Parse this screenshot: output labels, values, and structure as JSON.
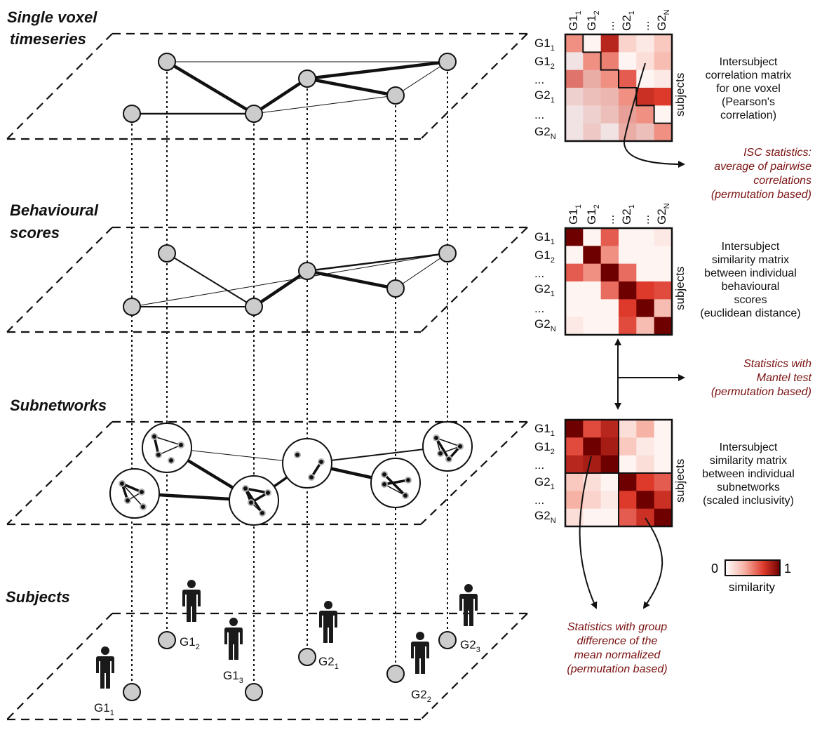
{
  "planes": {
    "timeseries": {
      "title_line1": "Single voxel",
      "title_line2": "timeseries"
    },
    "behaviour": {
      "title_line1": "Behavioural",
      "title_line2": "scores"
    },
    "subnetworks": {
      "title": "Subnetworks"
    },
    "subjects": {
      "title": "Subjects"
    }
  },
  "subjects": [
    {
      "group": "G1",
      "index": "1"
    },
    {
      "group": "G1",
      "index": "2"
    },
    {
      "group": "G1",
      "index": "3"
    },
    {
      "group": "G2",
      "index": "1"
    },
    {
      "group": "G2",
      "index": "2"
    },
    {
      "group": "G2",
      "index": "3"
    }
  ],
  "matrix_axis": {
    "top_labels": [
      {
        "main": "G1",
        "sub": "1"
      },
      {
        "main": "G1",
        "sub": "2"
      },
      {
        "main": "...",
        "sub": ""
      },
      {
        "main": "G2",
        "sub": "1"
      },
      {
        "main": "...",
        "sub": ""
      },
      {
        "main": "G2",
        "sub": "N"
      }
    ],
    "row_labels": [
      {
        "main": "G1",
        "sub": "1"
      },
      {
        "main": "G1",
        "sub": "2"
      },
      {
        "main": "...",
        "sub": ""
      },
      {
        "main": "G2",
        "sub": "1"
      },
      {
        "main": "...",
        "sub": ""
      },
      {
        "main": "G2",
        "sub": "N"
      }
    ],
    "side_label": "subjects"
  },
  "matrices": {
    "isc": {
      "desc": [
        "Intersubject",
        "correlation matrix",
        "for one voxel",
        "(Pearson's",
        "correlation)"
      ],
      "values": [
        [
          0.45,
          0.05,
          0.8,
          0.2,
          0.1,
          0.25
        ],
        [
          0.05,
          0.45,
          0.5,
          0.05,
          0.15,
          0.3
        ],
        [
          0.55,
          0.35,
          0.45,
          0.6,
          0.05,
          0.1
        ],
        [
          0.15,
          0.25,
          0.3,
          0.45,
          0.75,
          0.7
        ],
        [
          0.05,
          0.15,
          0.25,
          0.4,
          0.45,
          0.05
        ],
        [
          0.05,
          0.2,
          0.05,
          0.35,
          0.25,
          0.45
        ]
      ]
    },
    "behaviour": {
      "desc": [
        "Intersubject",
        "similarity matrix",
        "between individual",
        "behavioural",
        "scores",
        "(euclidean distance)"
      ],
      "values": [
        [
          1.0,
          0.05,
          0.6,
          0.05,
          0.05,
          0.1
        ],
        [
          0.05,
          1.0,
          0.45,
          0.05,
          0.05,
          0.05
        ],
        [
          0.6,
          0.45,
          1.0,
          0.55,
          0.05,
          0.05
        ],
        [
          0.05,
          0.05,
          0.55,
          1.0,
          0.7,
          0.65
        ],
        [
          0.05,
          0.05,
          0.05,
          0.7,
          1.0,
          0.3
        ],
        [
          0.1,
          0.05,
          0.05,
          0.65,
          0.3,
          1.0
        ]
      ]
    },
    "subnetworks": {
      "desc": [
        "Intersubject",
        "similarity matrix",
        "between individual",
        "subnetworks",
        "(scaled inclusivity)"
      ],
      "values": [
        [
          1.0,
          0.65,
          0.8,
          0.15,
          0.35,
          0.05
        ],
        [
          0.65,
          1.0,
          0.85,
          0.25,
          0.1,
          0.05
        ],
        [
          0.8,
          0.85,
          1.0,
          0.05,
          0.15,
          0.05
        ],
        [
          0.25,
          0.15,
          0.05,
          1.0,
          0.7,
          0.6
        ],
        [
          0.35,
          0.2,
          0.1,
          0.7,
          1.0,
          0.75
        ],
        [
          0.15,
          0.05,
          0.05,
          0.6,
          0.75,
          1.0
        ]
      ]
    }
  },
  "stats": {
    "isc": [
      "ISC statistics:",
      "average of pairwise",
      "correlations",
      "(permutation based)"
    ],
    "mantel": [
      "Statistics with",
      "Mantel test",
      "(permutation based)"
    ],
    "group": [
      "Statistics with group",
      "difference of the",
      "mean normalized",
      "(permutation based)"
    ]
  },
  "colorbar": {
    "min": "0",
    "max": "1",
    "label": "similarity"
  },
  "colors": {
    "red_text": "#7a1010",
    "heat_low": "#ffffff",
    "heat_high": "#7a0000",
    "node_fill": "#cccccc"
  }
}
